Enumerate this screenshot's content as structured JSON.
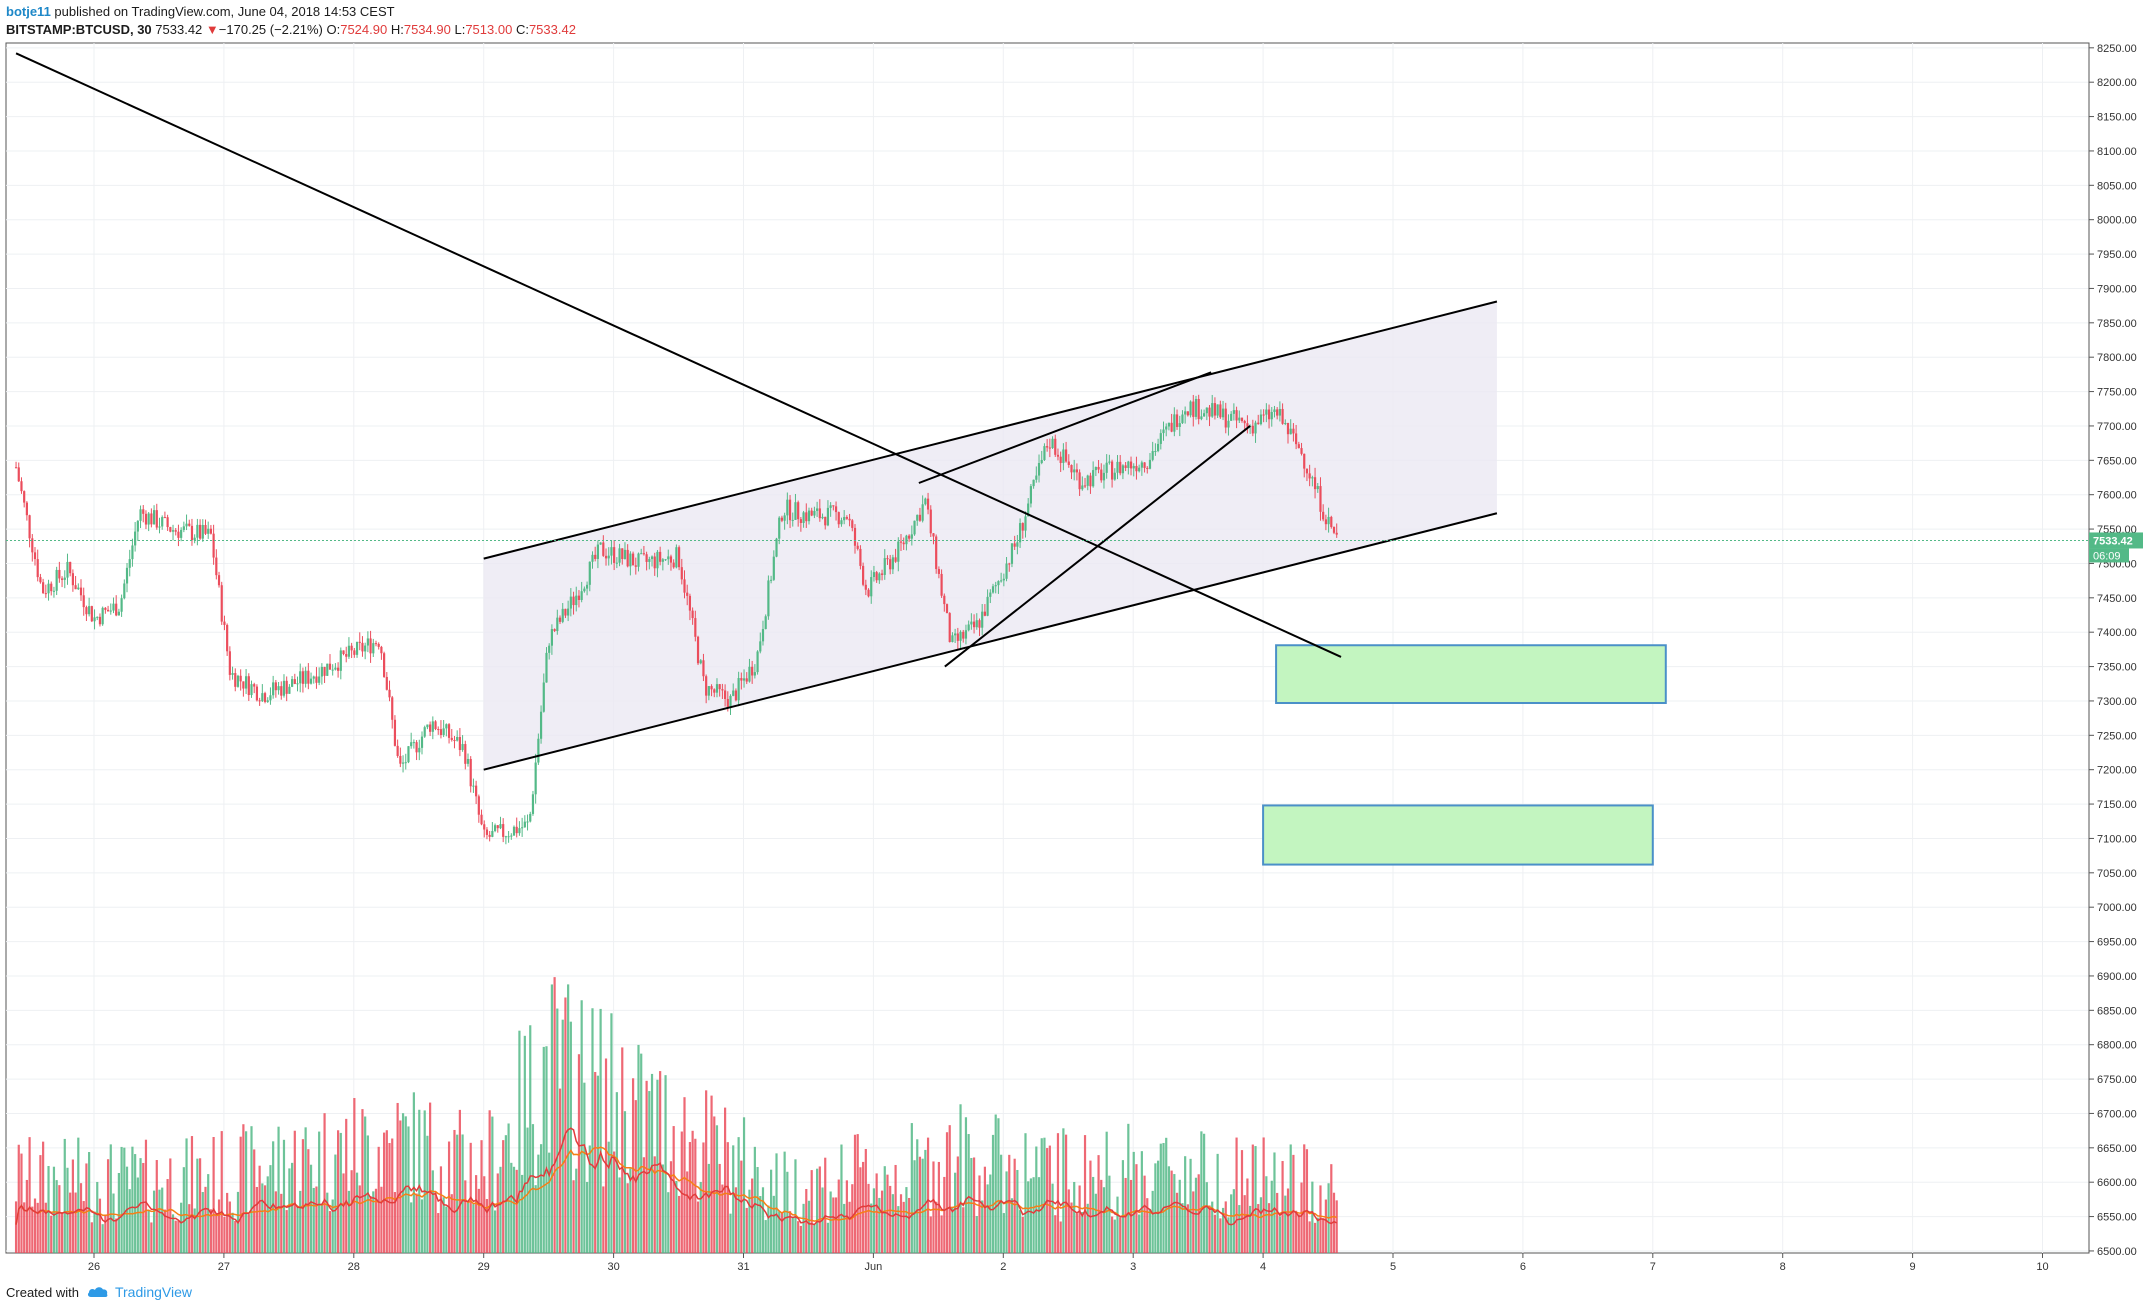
{
  "header": {
    "author": "botje11",
    "published_text": "published on TradingView.com, June 04, 2018 14:53 CEST",
    "symbol": "BITSTAMP:BTCUSD, 30",
    "last": "7533.42",
    "change_arrow": "▼",
    "change": "−170.25 (−2.21%)",
    "o_label": "O:",
    "o_val": "7524.90",
    "h_label": "H:",
    "h_val": "7534.90",
    "l_label": "L:",
    "l_val": "7513.00",
    "c_label": "C:",
    "c_val": "7533.42"
  },
  "footer": {
    "created_with": "Created with",
    "brand": "TradingView"
  },
  "colors": {
    "up": "#53b987",
    "down": "#eb4d5c",
    "grid": "#eef0f3",
    "zone_fill": "#c3f5c0",
    "zone_border": "#4a90c8",
    "channel_fill": "#ebe8f2",
    "ma_orange": "#f57f17",
    "ma_red": "#e23b3b",
    "price_label": "#53b987"
  },
  "chart_data": {
    "type": "candlestick",
    "symbol": "BITSTAMP:BTCUSD",
    "interval": "30",
    "x_ticks": [
      "26",
      "27",
      "28",
      "29",
      "30",
      "31",
      "Jun",
      "2",
      "3",
      "4",
      "5",
      "6",
      "7",
      "8",
      "9",
      "10"
    ],
    "y_ticks": [
      "8250.00",
      "8200.00",
      "8150.00",
      "8100.00",
      "8050.00",
      "8000.00",
      "7950.00",
      "7900.00",
      "7850.00",
      "7800.00",
      "7750.00",
      "7700.00",
      "7650.00",
      "7600.00",
      "7550.00",
      "7500.00",
      "7450.00",
      "7400.00",
      "7350.00",
      "7300.00",
      "7250.00",
      "7200.00",
      "7150.00",
      "7100.00",
      "7050.00",
      "7000.00",
      "6950.00",
      "6900.00",
      "6850.00",
      "6800.00",
      "6750.00",
      "6700.00",
      "6650.00",
      "6600.00",
      "6550.00",
      "6500.00"
    ],
    "ylim": [
      6497,
      8257
    ],
    "last_price": 7533.42,
    "last_price_label": "7533.42",
    "countdown_label": "06:09",
    "price_path": [
      {
        "day": 25.4,
        "price": 7640
      },
      {
        "day": 25.6,
        "price": 7460
      },
      {
        "day": 25.8,
        "price": 7490
      },
      {
        "day": 26.0,
        "price": 7420
      },
      {
        "day": 26.2,
        "price": 7440
      },
      {
        "day": 26.35,
        "price": 7575
      },
      {
        "day": 26.6,
        "price": 7550
      },
      {
        "day": 26.9,
        "price": 7540
      },
      {
        "day": 27.05,
        "price": 7340
      },
      {
        "day": 27.3,
        "price": 7310
      },
      {
        "day": 27.6,
        "price": 7330
      },
      {
        "day": 27.9,
        "price": 7360
      },
      {
        "day": 28.2,
        "price": 7390
      },
      {
        "day": 28.35,
        "price": 7200
      },
      {
        "day": 28.6,
        "price": 7270
      },
      {
        "day": 28.85,
        "price": 7230
      },
      {
        "day": 29.0,
        "price": 7100
      },
      {
        "day": 29.35,
        "price": 7120
      },
      {
        "day": 29.5,
        "price": 7390
      },
      {
        "day": 29.7,
        "price": 7450
      },
      {
        "day": 29.9,
        "price": 7520
      },
      {
        "day": 30.2,
        "price": 7500
      },
      {
        "day": 30.5,
        "price": 7510
      },
      {
        "day": 30.7,
        "price": 7320
      },
      {
        "day": 30.9,
        "price": 7300
      },
      {
        "day": 31.1,
        "price": 7360
      },
      {
        "day": 31.3,
        "price": 7580
      },
      {
        "day": 31.5,
        "price": 7570
      },
      {
        "day": 31.8,
        "price": 7570
      },
      {
        "day": 31.95,
        "price": 7460
      },
      {
        "day": 32.2,
        "price": 7520
      },
      {
        "day": 32.4,
        "price": 7590
      },
      {
        "day": 32.6,
        "price": 7380
      },
      {
        "day": 32.8,
        "price": 7410
      },
      {
        "day": 33.1,
        "price": 7530
      },
      {
        "day": 33.35,
        "price": 7680
      },
      {
        "day": 33.6,
        "price": 7620
      },
      {
        "day": 33.9,
        "price": 7640
      },
      {
        "day": 34.1,
        "price": 7650
      },
      {
        "day": 34.4,
        "price": 7730
      },
      {
        "day": 34.6,
        "price": 7720
      },
      {
        "day": 34.9,
        "price": 7700
      },
      {
        "day": 35.1,
        "price": 7720
      },
      {
        "day": 35.3,
        "price": 7660
      },
      {
        "day": 35.4,
        "price": 7610
      },
      {
        "day": 35.5,
        "price": 7560
      },
      {
        "day": 35.58,
        "price": 7533
      }
    ],
    "volume_ylim": [
      0,
      100
    ],
    "volume_path": [
      {
        "day": 25.4,
        "volume": 40
      },
      {
        "day": 26.35,
        "volume": 38
      },
      {
        "day": 27.05,
        "volume": 42
      },
      {
        "day": 28.35,
        "volume": 60
      },
      {
        "day": 29.0,
        "volume": 45
      },
      {
        "day": 29.5,
        "volume": 100
      },
      {
        "day": 30.7,
        "volume": 58
      },
      {
        "day": 31.3,
        "volume": 35
      },
      {
        "day": 32.4,
        "volume": 45
      },
      {
        "day": 32.6,
        "volume": 52
      },
      {
        "day": 33.35,
        "volume": 42
      },
      {
        "day": 34.4,
        "volume": 45
      },
      {
        "day": 35.5,
        "volume": 35
      }
    ],
    "drawings": {
      "descending_trendline": [
        {
          "day": 25.4,
          "price": 8242
        },
        {
          "day": 35.6,
          "price": 7364
        }
      ],
      "channel_lower": [
        {
          "day": 29.0,
          "price": 7200
        },
        {
          "day": 36.8,
          "price": 7573
        }
      ],
      "channel_upper": [
        {
          "day": 29.0,
          "price": 7507
        },
        {
          "day": 36.8,
          "price": 7881
        }
      ],
      "rising_line_a": [
        {
          "day": 32.55,
          "price": 7350
        },
        {
          "day": 34.9,
          "price": 7700
        }
      ],
      "rising_line_b": [
        {
          "day": 32.35,
          "price": 7617
        },
        {
          "day": 34.6,
          "price": 7778
        }
      ],
      "support_zones": [
        {
          "day_start": 35.1,
          "day_end": 38.1,
          "price_low": 7297,
          "price_high": 7381
        },
        {
          "day_start": 35.0,
          "day_end": 38.0,
          "price_low": 7062,
          "price_high": 7148
        }
      ]
    }
  }
}
